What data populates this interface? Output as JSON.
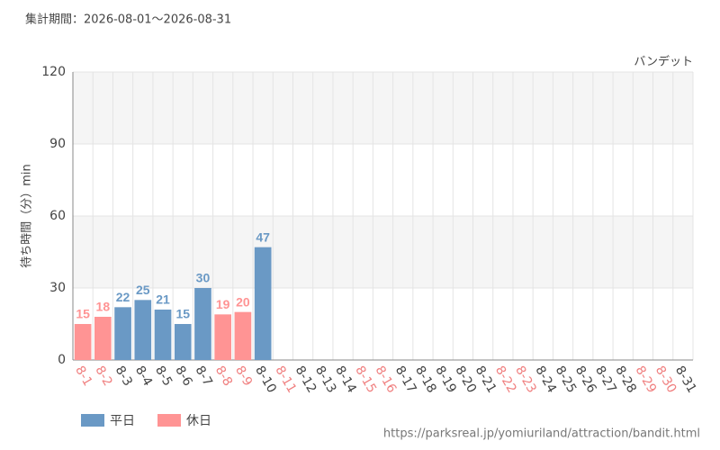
{
  "chart_data": {
    "type": "bar",
    "title": "集計期間：2026-08-01～2026-08-31",
    "subtitle": "バンデット",
    "y_label": "待ち時間（分）min",
    "source": "https://parksreal.jp/yomiuriland/attraction/bandit.html",
    "categories": [
      "8-1",
      "8-2",
      "8-3",
      "8-4",
      "8-5",
      "8-6",
      "8-7",
      "8-8",
      "8-9",
      "8-10",
      "8-11",
      "8-12",
      "8-13",
      "8-14",
      "8-15",
      "8-16",
      "8-17",
      "8-18",
      "8-19",
      "8-20",
      "8-21",
      "8-22",
      "8-23",
      "8-24",
      "8-25",
      "8-26",
      "8-27",
      "8-28",
      "8-29",
      "8-30",
      "8-31"
    ],
    "category_colors": [
      "#f08080",
      "#f08080",
      "#444",
      "#444",
      "#444",
      "#444",
      "#444",
      "#f08080",
      "#f08080",
      "#444",
      "#f08080",
      "#444",
      "#444",
      "#444",
      "#f08080",
      "#f08080",
      "#444",
      "#444",
      "#444",
      "#444",
      "#444",
      "#f08080",
      "#f08080",
      "#444",
      "#444",
      "#444",
      "#444",
      "#444",
      "#f08080",
      "#f08080",
      "#444"
    ],
    "series": [
      {
        "name": "平日",
        "color": "#6a99c5",
        "values": [
          null,
          null,
          22,
          25,
          21,
          15,
          30,
          null,
          null,
          47,
          null,
          null,
          null,
          null,
          null,
          null,
          null,
          null,
          null,
          null,
          null,
          null,
          null,
          null,
          null,
          null,
          null,
          null,
          null,
          null,
          null
        ]
      },
      {
        "name": "休日",
        "color": "#ff9494",
        "values": [
          15,
          18,
          null,
          null,
          null,
          null,
          null,
          19,
          20,
          null,
          null,
          null,
          null,
          null,
          null,
          null,
          null,
          null,
          null,
          null,
          null,
          null,
          null,
          null,
          null,
          null,
          null,
          null,
          null,
          null,
          null
        ]
      }
    ],
    "ylim": [
      0,
      120
    ],
    "yticks": [
      0,
      30,
      60,
      90,
      120
    ],
    "grid": true
  }
}
